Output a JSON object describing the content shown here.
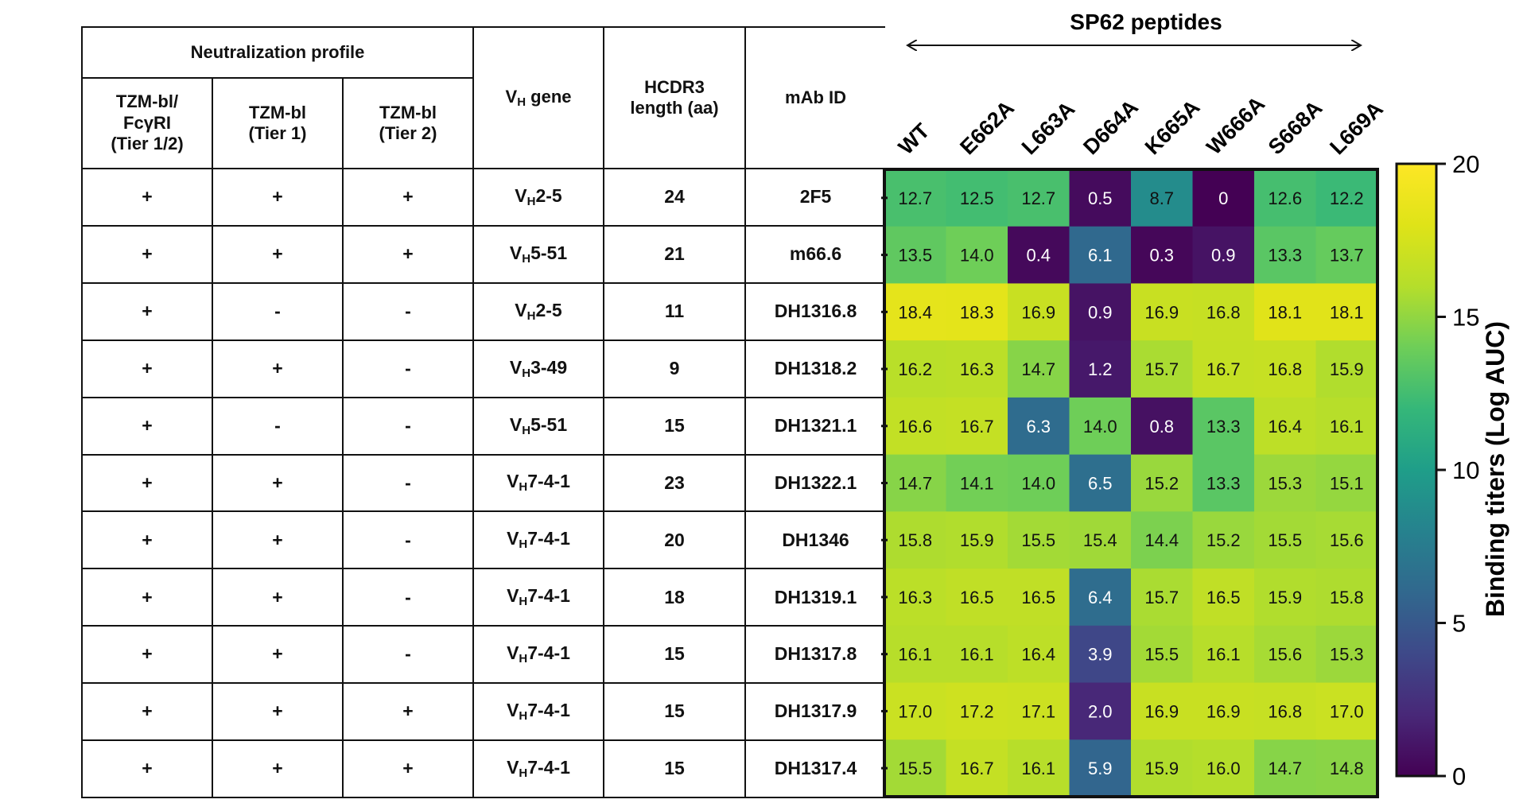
{
  "table": {
    "group_header": "Neutralization profile",
    "columns": {
      "fcgri": [
        "TZM-bl/",
        "FcγRI",
        "(Tier 1/2)"
      ],
      "tier1": [
        "TZM-bl",
        "(Tier 1)"
      ],
      "tier2": [
        "TZM-bl",
        "(Tier 2)"
      ],
      "vh_gene": {
        "main": "V",
        "sub": "H",
        "rest": " gene"
      },
      "hcdr3": [
        "HCDR3",
        "length (aa)"
      ],
      "mab_id": "mAb ID"
    },
    "rows": [
      {
        "fcgri": "+",
        "tier1": "+",
        "tier2": "+",
        "vh": {
          "main": "V",
          "sub": "H",
          "rest": "2-5"
        },
        "hcdr3": "24",
        "mab": "2F5"
      },
      {
        "fcgri": "+",
        "tier1": "+",
        "tier2": "+",
        "vh": {
          "main": "V",
          "sub": "H",
          "rest": "5-51"
        },
        "hcdr3": "21",
        "mab": "m66.6"
      },
      {
        "fcgri": "+",
        "tier1": "-",
        "tier2": "-",
        "vh": {
          "main": "V",
          "sub": "H",
          "rest": "2-5"
        },
        "hcdr3": "11",
        "mab": "DH1316.8"
      },
      {
        "fcgri": "+",
        "tier1": "+",
        "tier2": "-",
        "vh": {
          "main": "V",
          "sub": "H",
          "rest": "3-49"
        },
        "hcdr3": "9",
        "mab": "DH1318.2"
      },
      {
        "fcgri": "+",
        "tier1": "-",
        "tier2": "-",
        "vh": {
          "main": "V",
          "sub": "H",
          "rest": "5-51"
        },
        "hcdr3": "15",
        "mab": "DH1321.1"
      },
      {
        "fcgri": "+",
        "tier1": "+",
        "tier2": "-",
        "vh": {
          "main": "V",
          "sub": "H",
          "rest": "7-4-1"
        },
        "hcdr3": "23",
        "mab": "DH1322.1"
      },
      {
        "fcgri": "+",
        "tier1": "+",
        "tier2": "-",
        "vh": {
          "main": "V",
          "sub": "H",
          "rest": "7-4-1"
        },
        "hcdr3": "20",
        "mab": "DH1346"
      },
      {
        "fcgri": "+",
        "tier1": "+",
        "tier2": "-",
        "vh": {
          "main": "V",
          "sub": "H",
          "rest": "7-4-1"
        },
        "hcdr3": "18",
        "mab": "DH1319.1"
      },
      {
        "fcgri": "+",
        "tier1": "+",
        "tier2": "-",
        "vh": {
          "main": "V",
          "sub": "H",
          "rest": "7-4-1"
        },
        "hcdr3": "15",
        "mab": "DH1317.8"
      },
      {
        "fcgri": "+",
        "tier1": "+",
        "tier2": "+",
        "vh": {
          "main": "V",
          "sub": "H",
          "rest": "7-4-1"
        },
        "hcdr3": "15",
        "mab": "DH1317.9"
      },
      {
        "fcgri": "+",
        "tier1": "+",
        "tier2": "+",
        "vh": {
          "main": "V",
          "sub": "H",
          "rest": "7-4-1"
        },
        "hcdr3": "15",
        "mab": "DH1317.4"
      }
    ]
  },
  "chart_data": {
    "type": "heatmap",
    "title": "SP62 peptides",
    "x": [
      "WT",
      "E662A",
      "L663A",
      "D664A",
      "K665A",
      "W666A",
      "S668A",
      "L669A"
    ],
    "y": [
      "2F5",
      "m66.6",
      "DH1316.8",
      "DH1318.2",
      "DH1321.1",
      "DH1322.1",
      "DH1346",
      "DH1319.1",
      "DH1317.8",
      "DH1317.9",
      "DH1317.4"
    ],
    "values": [
      [
        12.7,
        12.5,
        12.7,
        0.5,
        8.7,
        0,
        12.6,
        12.2
      ],
      [
        13.5,
        14.0,
        0.4,
        6.1,
        0.3,
        0.9,
        13.3,
        13.7
      ],
      [
        18.4,
        18.3,
        16.9,
        0.9,
        16.9,
        16.8,
        18.1,
        18.1
      ],
      [
        16.2,
        16.3,
        14.7,
        1.2,
        15.7,
        16.7,
        16.8,
        15.9
      ],
      [
        16.6,
        16.7,
        6.3,
        14.0,
        0.8,
        13.3,
        16.4,
        16.1
      ],
      [
        14.7,
        14.1,
        14.0,
        6.5,
        15.2,
        13.3,
        15.3,
        15.1
      ],
      [
        15.8,
        15.9,
        15.5,
        15.4,
        14.4,
        15.2,
        15.5,
        15.6
      ],
      [
        16.3,
        16.5,
        16.5,
        6.4,
        15.7,
        16.5,
        15.9,
        15.8
      ],
      [
        16.1,
        16.1,
        16.4,
        3.9,
        15.5,
        16.1,
        15.6,
        15.3
      ],
      [
        17.0,
        17.2,
        17.1,
        2.0,
        16.9,
        16.9,
        16.8,
        17.0
      ],
      [
        15.5,
        16.7,
        16.1,
        5.9,
        15.9,
        16.0,
        14.7,
        14.8
      ]
    ],
    "value_labels": [
      [
        "12.7",
        "12.5",
        "12.7",
        "0.5",
        "8.7",
        "0",
        "12.6",
        "12.2"
      ],
      [
        "13.5",
        "14.0",
        "0.4",
        "6.1",
        "0.3",
        "0.9",
        "13.3",
        "13.7"
      ],
      [
        "18.4",
        "18.3",
        "16.9",
        "0.9",
        "16.9",
        "16.8",
        "18.1",
        "18.1"
      ],
      [
        "16.2",
        "16.3",
        "14.7",
        "1.2",
        "15.7",
        "16.7",
        "16.8",
        "15.9"
      ],
      [
        "16.6",
        "16.7",
        "6.3",
        "14.0",
        "0.8",
        "13.3",
        "16.4",
        "16.1"
      ],
      [
        "14.7",
        "14.1",
        "14.0",
        "6.5",
        "15.2",
        "13.3",
        "15.3",
        "15.1"
      ],
      [
        "15.8",
        "15.9",
        "15.5",
        "15.4",
        "14.4",
        "15.2",
        "15.5",
        "15.6"
      ],
      [
        "16.3",
        "16.5",
        "16.5",
        "6.4",
        "15.7",
        "16.5",
        "15.9",
        "15.8"
      ],
      [
        "16.1",
        "16.1",
        "16.4",
        "3.9",
        "15.5",
        "16.1",
        "15.6",
        "15.3"
      ],
      [
        "17.0",
        "17.2",
        "17.1",
        "2.0",
        "16.9",
        "16.9",
        "16.8",
        "17.0"
      ],
      [
        "15.5",
        "16.7",
        "16.1",
        "5.9",
        "15.9",
        "16.0",
        "14.7",
        "14.8"
      ]
    ],
    "colorbar": {
      "label": "Binding titers (Log AUC)",
      "range": [
        0,
        20
      ],
      "ticks": [
        "0",
        "5",
        "10",
        "15",
        "20"
      ],
      "colormap": "viridis"
    }
  }
}
